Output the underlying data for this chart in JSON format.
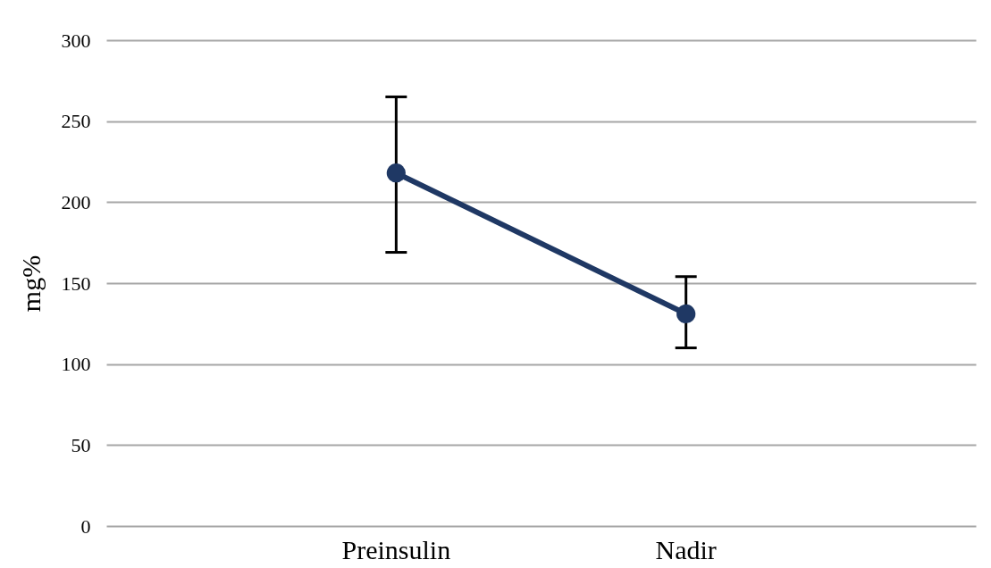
{
  "chart_data": {
    "type": "line",
    "ylabel": "mg%",
    "categories": [
      "Preinsulin",
      "Nadir"
    ],
    "series": [
      {
        "color": "#1f3864",
        "values": [
          218,
          131
        ],
        "errors": [
          [
            169,
            265
          ],
          [
            110,
            154
          ]
        ]
      }
    ],
    "ylim": [
      0,
      300
    ],
    "yticks": [
      0,
      50,
      100,
      150,
      200,
      250,
      300
    ],
    "grid": "y",
    "marker": "circle",
    "line_style": "solid"
  }
}
